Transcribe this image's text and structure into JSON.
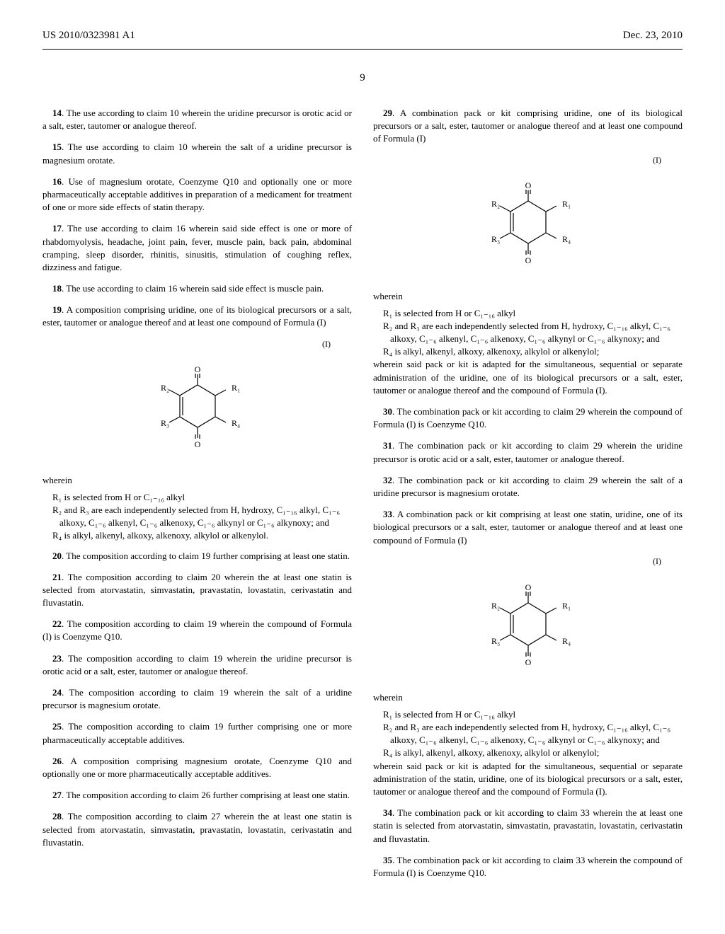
{
  "header": {
    "pub_number": "US 2010/0323981 A1",
    "date": "Dec. 23, 2010"
  },
  "page_number": "9",
  "formula_label": "(I)",
  "formula": {
    "r1": "R₁",
    "r2": "R₂",
    "r3": "R₃",
    "r4": "R₄",
    "o_top": "O",
    "o_bot": "O"
  },
  "claims_left": [
    {
      "num": "14",
      "text": ". The use according to claim 10 wherein the uridine precursor is orotic acid or a salt, ester, tautomer or analogue thereof."
    },
    {
      "num": "15",
      "text": ". The use according to claim 10 wherein the salt of a uridine precursor is magnesium orotate."
    },
    {
      "num": "16",
      "text": ". Use of magnesium orotate, Coenzyme Q10 and optionally one or more pharmaceutically acceptable additives in preparation of a medicament for treatment of one or more side effects of statin therapy."
    },
    {
      "num": "17",
      "text": ". The use according to claim 16 wherein said side effect is one or more of rhabdomyolysis, headache, joint pain, fever, muscle pain, back pain, abdominal cramping, sleep disorder, rhinitis, sinusitis, stimulation of coughing reflex, dizziness and fatigue."
    },
    {
      "num": "18",
      "text": ". The use according to claim 16 wherein said side effect is muscle pain."
    },
    {
      "num": "19",
      "text": ". A composition comprising uridine, one of its biological precursors or a salt, ester, tautomer or analogue thereof and at least one compound of Formula (I)"
    }
  ],
  "wherein_block": {
    "wherein": "wherein",
    "r1_def": "R₁ is selected from H or C₁₋₁₆ alkyl",
    "r23_def": "R₂ and R₃ are each independently selected from H, hydroxy, C₁₋₁₆ alkyl, C₁₋₆ alkoxy, C₁₋₆ alkenyl, C₁₋₆ alkenoxy, C₁₋₆ alkynyl or C₁₋₆ alkynoxy; and",
    "r4_def": "R₄ is alkyl, alkenyl, alkoxy, alkenoxy, alkylol or alkenylol."
  },
  "claims_left2": [
    {
      "num": "20",
      "text": ". The composition according to claim 19 further comprising at least one statin."
    },
    {
      "num": "21",
      "text": ". The composition according to claim 20 wherein the at least one statin is selected from atorvastatin, simvastatin, pravastatin, lovastatin, cerivastatin and fluvastatin."
    },
    {
      "num": "22",
      "text": ". The composition according to claim 19 wherein the compound of Formula (I) is Coenzyme Q10."
    },
    {
      "num": "23",
      "text": ". The composition according to claim 19 wherein the uridine precursor is orotic acid or a salt, ester, tautomer or analogue thereof."
    },
    {
      "num": "24",
      "text": ". The composition according to claim 19 wherein the salt of a uridine precursor is magnesium orotate."
    },
    {
      "num": "25",
      "text": ". The composition according to claim 19 further comprising one or more pharmaceutically acceptable additives."
    },
    {
      "num": "26",
      "text": ". A composition comprising magnesium orotate, Coenzyme Q10 and optionally one or more pharmaceutically acceptable additives."
    },
    {
      "num": "27",
      "text": ". The composition according to claim 26 further comprising at least one statin."
    },
    {
      "num": "28",
      "text": ". The composition according to claim 27 wherein the at least one statin is selected from atorvastatin, simvastatin, pravastatin, lovastatin, cerivastatin and fluvastatin."
    }
  ],
  "claims_right": [
    {
      "num": "29",
      "text": ". A combination pack or kit comprising uridine, one of its biological precursors or a salt, ester, tautomer or analogue thereof and at least one compound of Formula (I)"
    }
  ],
  "wherein_block2": {
    "wherein": "wherein",
    "r1_def": "R₁ is selected from H or C₁₋₁₆ alkyl",
    "r23_def": "R₂ and R₃ are each independently selected from H, hydroxy, C₁₋₁₆ alkyl, C₁₋₆ alkoxy, C₁₋₆ alkenyl, C₁₋₆ alkenoxy, C₁₋₆ alkynyl or C₁₋₆ alkynoxy; and",
    "r4_def": "R₄ is alkyl, alkenyl, alkoxy, alkenoxy, alkylol or alkenylol;",
    "tail": "wherein said pack or kit is adapted for the simultaneous, sequential or separate administration of the uridine, one of its biological precursors or a salt, ester, tautomer or analogue thereof and the compound of Formula (I)."
  },
  "claims_right2": [
    {
      "num": "30",
      "text": ". The combination pack or kit according to claim 29 wherein the compound of Formula (I) is Coenzyme Q10."
    },
    {
      "num": "31",
      "text": ". The combination pack or kit according to claim 29 wherein the uridine precursor is orotic acid or a salt, ester, tautomer or analogue thereof."
    },
    {
      "num": "32",
      "text": ". The combination pack or kit according to claim 29 wherein the salt of a uridine precursor is magnesium orotate."
    },
    {
      "num": "33",
      "text": ". A combination pack or kit comprising at least one statin, uridine, one of its biological precursors or a salt, ester, tautomer or analogue thereof and at least one compound of Formula (I)"
    }
  ],
  "wherein_block3": {
    "wherein": "wherein",
    "r1_def": "R₁ is selected from H or C₁₋₁₆ alkyl",
    "r23_def": "R₂ and R₃ are each independently selected from H, hydroxy, C₁₋₁₆ alkyl, C₁₋₆ alkoxy, C₁₋₆ alkenyl, C₁₋₆ alkenoxy, C₁₋₆ alkynyl or C₁₋₆ alkynoxy; and",
    "r4_def": "R₄ is alkyl, alkenyl, alkoxy, alkenoxy, alkylol or alkenylol;",
    "tail": "wherein said pack or kit is adapted for the simultaneous, sequential or separate administration of the statin, uridine, one of its biological precursors or a salt, ester, tautomer or analogue thereof and the compound of Formula (I)."
  },
  "claims_right3": [
    {
      "num": "34",
      "text": ". The combination pack or kit according to claim 33 wherein the at least one statin is selected from atorvastatin, simvastatin, pravastatin, lovastatin, cerivastatin and fluvastatin."
    },
    {
      "num": "35",
      "text": ". The combination pack or kit according to claim 33 wherein the compound of Formula (I) is Coenzyme Q10."
    }
  ]
}
